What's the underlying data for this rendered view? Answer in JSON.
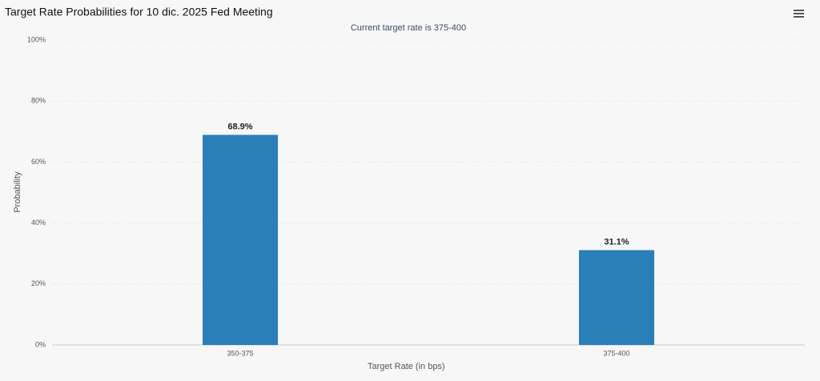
{
  "chart_data": {
    "type": "bar",
    "title": "Target Rate Probabilities for 10 dic. 2025 Fed Meeting",
    "subtitle": "Current target rate is 375-400",
    "x_label": "Target Rate (in bps)",
    "y_label": "Probability",
    "categories": [
      "350-375",
      "375-400"
    ],
    "values": [
      68.9,
      31.1
    ],
    "value_labels": [
      "68.9%",
      "31.1%"
    ],
    "color": "#2b7fb8",
    "ylim": [
      0,
      100
    ],
    "yticks": [
      {
        "value": 0,
        "label": "0%"
      },
      {
        "value": 20,
        "label": "20%"
      },
      {
        "value": 40,
        "label": "40%"
      },
      {
        "value": 60,
        "label": "60%"
      },
      {
        "value": 80,
        "label": "80%"
      },
      {
        "value": 100,
        "label": "100%"
      }
    ],
    "grid": true
  }
}
